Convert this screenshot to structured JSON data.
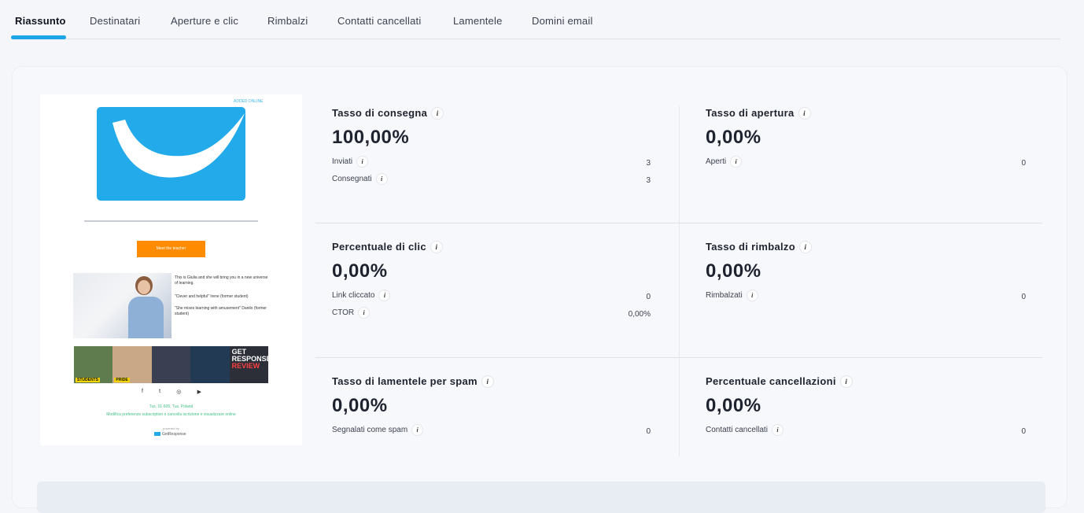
{
  "tabs": [
    {
      "label": "Riassunto",
      "active": true
    },
    {
      "label": "Destinatari"
    },
    {
      "label": "Aperture e clic"
    },
    {
      "label": "Rimbalzi"
    },
    {
      "label": "Contatti cancellati"
    },
    {
      "label": "Lamentele"
    },
    {
      "label": "Domini email"
    }
  ],
  "accent_color": "#1ca6e8",
  "preview": {
    "top_link": "ADDED ONLINE",
    "button_label": "Meet the teacher",
    "intro_1": "This is Giulia and she will bring you in a new universe of learning.",
    "quote_1": "\"Clever and helpful\" Irene (former student)",
    "quote_2": "\"She mixes learning with amusement\" Danilo (former student)",
    "banner_students": "STUDENTS",
    "banner_pride": "PRIDE",
    "banner_get": "GET",
    "banner_response": "RESPONSE",
    "banner_review": "REVIEW",
    "address": "Tus, 01-605, Tus, Poland",
    "footer": "Modifica preferenze subscription o cancella iscrizione e visualizzare online",
    "powered": "powered by",
    "brand": "GetResponse"
  },
  "metrics": {
    "delivery": {
      "title": "Tasso di consegna",
      "value": "100,00%",
      "rows": [
        {
          "label": "Inviati",
          "value": "3"
        },
        {
          "label": "Consegnati",
          "value": "3"
        }
      ]
    },
    "open": {
      "title": "Tasso di apertura",
      "value": "0,00%",
      "rows": [
        {
          "label": "Aperti",
          "value": "0"
        }
      ]
    },
    "click": {
      "title": "Percentuale di clic",
      "value": "0,00%",
      "rows": [
        {
          "label": "Link cliccato",
          "value": "0"
        },
        {
          "label": "CTOR",
          "value": "0,00%"
        }
      ]
    },
    "bounce": {
      "title": "Tasso di rimbalzo",
      "value": "0,00%",
      "rows": [
        {
          "label": "Rimbalzati",
          "value": "0"
        }
      ]
    },
    "spam": {
      "title": "Tasso di lamentele per spam",
      "value": "0,00%",
      "rows": [
        {
          "label": "Segnalati come spam",
          "value": "0"
        }
      ]
    },
    "unsub": {
      "title": "Percentuale cancellazioni",
      "value": "0,00%",
      "rows": [
        {
          "label": "Contatti cancellati",
          "value": "0"
        }
      ]
    }
  },
  "info_glyph": "i",
  "icons": {
    "info": "info-icon",
    "social": [
      "facebook-icon",
      "twitter-icon",
      "instagram-icon",
      "youtube-icon"
    ]
  },
  "social_glyphs": [
    "f",
    "t",
    "◎",
    "▶"
  ]
}
